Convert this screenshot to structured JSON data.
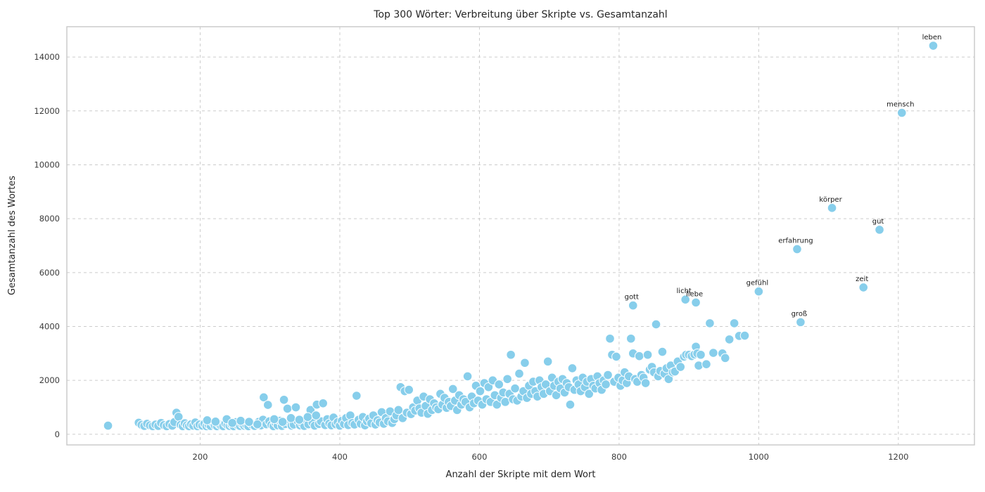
{
  "chart_data": {
    "type": "scatter",
    "title": "Top 300 Wörter: Verbreitung über Skripte vs. Gesamtanzahl",
    "xlabel": "Anzahl der Skripte mit dem Wort",
    "ylabel": "Gesamtanzahl des Wortes",
    "xlim": [
      9,
      1309
    ],
    "ylim": [
      -395,
      15125
    ],
    "xticks": [
      200,
      400,
      600,
      800,
      1000,
      1200
    ],
    "yticks": [
      0,
      2000,
      4000,
      6000,
      8000,
      10000,
      12000,
      14000
    ],
    "grid": true,
    "grid_style": "dashed",
    "legend": "none",
    "marker_color": "#87ceeb",
    "marker_edge_color": "#ffffff",
    "grid_color": "#cccccc",
    "spine_color": "#c8c8c8",
    "labeled_points": [
      {
        "label": "leben",
        "x": 1250,
        "y": 14420
      },
      {
        "label": "mensch",
        "x": 1205,
        "y": 11930
      },
      {
        "label": "körper",
        "x": 1105,
        "y": 8400
      },
      {
        "label": "gut",
        "x": 1173,
        "y": 7590
      },
      {
        "label": "erfahrung",
        "x": 1055,
        "y": 6870
      },
      {
        "label": "zeit",
        "x": 1150,
        "y": 5450
      },
      {
        "label": "gefühl",
        "x": 1000,
        "y": 5300
      },
      {
        "label": "licht",
        "x": 895,
        "y": 5000
      },
      {
        "label": "liebe",
        "x": 910,
        "y": 4890
      },
      {
        "label": "gott",
        "x": 820,
        "y": 4780
      },
      {
        "label": "groß",
        "x": 1060,
        "y": 4160
      }
    ],
    "points": [
      [
        68,
        320
      ],
      [
        112,
        430
      ],
      [
        116,
        350
      ],
      [
        120,
        310
      ],
      [
        124,
        390
      ],
      [
        128,
        330
      ],
      [
        132,
        300
      ],
      [
        136,
        360
      ],
      [
        140,
        310
      ],
      [
        144,
        420
      ],
      [
        148,
        340
      ],
      [
        152,
        300
      ],
      [
        156,
        380
      ],
      [
        160,
        320
      ],
      [
        163,
        450
      ],
      [
        166,
        800
      ],
      [
        169,
        650
      ],
      [
        172,
        350
      ],
      [
        175,
        300
      ],
      [
        178,
        410
      ],
      [
        181,
        330
      ],
      [
        184,
        300
      ],
      [
        187,
        370
      ],
      [
        190,
        320
      ],
      [
        193,
        440
      ],
      [
        196,
        300
      ],
      [
        199,
        360
      ],
      [
        203,
        320
      ],
      [
        206,
        390
      ],
      [
        209,
        300
      ],
      [
        212,
        350
      ],
      [
        215,
        310
      ],
      [
        218,
        430
      ],
      [
        221,
        330
      ],
      [
        224,
        300
      ],
      [
        227,
        370
      ],
      [
        230,
        320
      ],
      [
        233,
        300
      ],
      [
        236,
        400
      ],
      [
        239,
        340
      ],
      [
        242,
        310
      ],
      [
        245,
        360
      ],
      [
        248,
        300
      ],
      [
        251,
        450
      ],
      [
        254,
        330
      ],
      [
        257,
        310
      ],
      [
        260,
        380
      ],
      [
        263,
        320
      ],
      [
        266,
        350
      ],
      [
        269,
        300
      ],
      [
        272,
        420
      ],
      [
        275,
        340
      ],
      [
        278,
        310
      ],
      [
        281,
        390
      ],
      [
        284,
        460
      ],
      [
        287,
        330
      ],
      [
        290,
        540
      ],
      [
        291,
        1370
      ],
      [
        295,
        370
      ],
      [
        297,
        1090
      ],
      [
        299,
        480
      ],
      [
        302,
        350
      ],
      [
        305,
        300
      ],
      [
        308,
        420
      ],
      [
        311,
        330
      ],
      [
        314,
        500
      ],
      [
        317,
        310
      ],
      [
        320,
        1280
      ],
      [
        322,
        380
      ],
      [
        325,
        950
      ],
      [
        328,
        440
      ],
      [
        331,
        320
      ],
      [
        334,
        360
      ],
      [
        337,
        1000
      ],
      [
        340,
        480
      ],
      [
        343,
        330
      ],
      [
        346,
        400
      ],
      [
        349,
        310
      ],
      [
        352,
        530
      ],
      [
        355,
        370
      ],
      [
        358,
        900
      ],
      [
        361,
        430
      ],
      [
        364,
        320
      ],
      [
        367,
        1100
      ],
      [
        370,
        380
      ],
      [
        373,
        480
      ],
      [
        376,
        1150
      ],
      [
        379,
        340
      ],
      [
        382,
        560
      ],
      [
        385,
        400
      ],
      [
        388,
        330
      ],
      [
        391,
        620
      ],
      [
        394,
        370
      ],
      [
        397,
        450
      ],
      [
        400,
        320
      ],
      [
        403,
        500
      ],
      [
        406,
        380
      ],
      [
        409,
        600
      ],
      [
        412,
        340
      ],
      [
        415,
        700
      ],
      [
        418,
        420
      ],
      [
        421,
        360
      ],
      [
        424,
        1430
      ],
      [
        427,
        540
      ],
      [
        430,
        390
      ],
      [
        433,
        640
      ],
      [
        436,
        330
      ],
      [
        439,
        480
      ],
      [
        442,
        580
      ],
      [
        445,
        410
      ],
      [
        448,
        700
      ],
      [
        451,
        360
      ],
      [
        454,
        520
      ],
      [
        457,
        440
      ],
      [
        460,
        820
      ],
      [
        463,
        390
      ],
      [
        466,
        600
      ],
      [
        469,
        480
      ],
      [
        472,
        850
      ],
      [
        475,
        420
      ],
      [
        478,
        560
      ],
      [
        481,
        700
      ],
      [
        484,
        900
      ],
      [
        487,
        1750
      ],
      [
        490,
        600
      ],
      [
        493,
        1600
      ],
      [
        496,
        800
      ],
      [
        499,
        1650
      ],
      [
        502,
        750
      ],
      [
        505,
        1000
      ],
      [
        508,
        880
      ],
      [
        511,
        1250
      ],
      [
        514,
        960
      ],
      [
        517,
        800
      ],
      [
        520,
        1400
      ],
      [
        523,
        1050
      ],
      [
        526,
        760
      ],
      [
        529,
        1300
      ],
      [
        532,
        900
      ],
      [
        535,
        1150
      ],
      [
        538,
        1000
      ],
      [
        541,
        930
      ],
      [
        544,
        1500
      ],
      [
        547,
        1100
      ],
      [
        550,
        1350
      ],
      [
        553,
        980
      ],
      [
        556,
        1200
      ],
      [
        559,
        1050
      ],
      [
        562,
        1680
      ],
      [
        565,
        1250
      ],
      [
        568,
        900
      ],
      [
        571,
        1450
      ],
      [
        574,
        1100
      ],
      [
        577,
        1300
      ],
      [
        580,
        1200
      ],
      [
        583,
        2150
      ],
      [
        586,
        1000
      ],
      [
        589,
        1400
      ],
      [
        592,
        1150
      ],
      [
        595,
        1800
      ],
      [
        598,
        1250
      ],
      [
        601,
        1600
      ],
      [
        604,
        1100
      ],
      [
        607,
        1900
      ],
      [
        610,
        1300
      ],
      [
        613,
        1750
      ],
      [
        616,
        1200
      ],
      [
        619,
        2000
      ],
      [
        622,
        1450
      ],
      [
        625,
        1100
      ],
      [
        628,
        1850
      ],
      [
        631,
        1350
      ],
      [
        634,
        1550
      ],
      [
        637,
        1200
      ],
      [
        640,
        2050
      ],
      [
        643,
        1500
      ],
      [
        645,
        2950
      ],
      [
        648,
        1300
      ],
      [
        651,
        1700
      ],
      [
        654,
        1250
      ],
      [
        657,
        2250
      ],
      [
        660,
        1400
      ],
      [
        663,
        1600
      ],
      [
        665,
        2650
      ],
      [
        668,
        1350
      ],
      [
        671,
        1800
      ],
      [
        674,
        1500
      ],
      [
        677,
        1950
      ],
      [
        680,
        1600
      ],
      [
        683,
        1400
      ],
      [
        686,
        2000
      ],
      [
        689,
        1750
      ],
      [
        692,
        1500
      ],
      [
        695,
        1850
      ],
      [
        698,
        2700
      ],
      [
        701,
        1600
      ],
      [
        704,
        2100
      ],
      [
        707,
        1800
      ],
      [
        710,
        1450
      ],
      [
        713,
        1950
      ],
      [
        716,
        1700
      ],
      [
        719,
        2050
      ],
      [
        722,
        1550
      ],
      [
        725,
        1900
      ],
      [
        728,
        1750
      ],
      [
        730,
        1100
      ],
      [
        733,
        2450
      ],
      [
        736,
        1650
      ],
      [
        739,
        2000
      ],
      [
        742,
        1850
      ],
      [
        745,
        1600
      ],
      [
        748,
        2100
      ],
      [
        751,
        1750
      ],
      [
        754,
        1950
      ],
      [
        757,
        1500
      ],
      [
        760,
        2050
      ],
      [
        763,
        1800
      ],
      [
        766,
        1700
      ],
      [
        769,
        2150
      ],
      [
        772,
        1900
      ],
      [
        775,
        1650
      ],
      [
        778,
        2000
      ],
      [
        781,
        1850
      ],
      [
        784,
        2200
      ],
      [
        787,
        3550
      ],
      [
        790,
        2950
      ],
      [
        793,
        1950
      ],
      [
        796,
        2880
      ],
      [
        799,
        2100
      ],
      [
        802,
        1800
      ],
      [
        805,
        2000
      ],
      [
        808,
        2300
      ],
      [
        811,
        1900
      ],
      [
        814,
        2150
      ],
      [
        817,
        3550
      ],
      [
        820,
        3000
      ],
      [
        823,
        2050
      ],
      [
        826,
        1950
      ],
      [
        829,
        2900
      ],
      [
        832,
        2200
      ],
      [
        835,
        2100
      ],
      [
        838,
        1900
      ],
      [
        841,
        2950
      ],
      [
        844,
        2400
      ],
      [
        847,
        2500
      ],
      [
        850,
        2300
      ],
      [
        853,
        4080
      ],
      [
        856,
        2150
      ],
      [
        859,
        2350
      ],
      [
        862,
        3060
      ],
      [
        865,
        2250
      ],
      [
        868,
        2450
      ],
      [
        871,
        2050
      ],
      [
        874,
        2550
      ],
      [
        877,
        2300
      ],
      [
        880,
        2330
      ],
      [
        884,
        2700
      ],
      [
        888,
        2500
      ],
      [
        893,
        2880
      ],
      [
        896,
        2950
      ],
      [
        900,
        2950
      ],
      [
        904,
        2900
      ],
      [
        908,
        2960
      ],
      [
        910,
        3250
      ],
      [
        912,
        3000
      ],
      [
        914,
        2550
      ],
      [
        917,
        2950
      ],
      [
        925,
        2600
      ],
      [
        930,
        4120
      ],
      [
        935,
        3020
      ],
      [
        948,
        3000
      ],
      [
        952,
        2830
      ],
      [
        958,
        3520
      ],
      [
        965,
        4120
      ],
      [
        972,
        3650
      ],
      [
        980,
        3660
      ],
      [
        210,
        520
      ],
      [
        222,
        470
      ],
      [
        238,
        560
      ],
      [
        246,
        420
      ],
      [
        258,
        500
      ],
      [
        270,
        460
      ],
      [
        282,
        370
      ],
      [
        306,
        560
      ],
      [
        318,
        460
      ],
      [
        330,
        600
      ],
      [
        342,
        540
      ],
      [
        354,
        640
      ],
      [
        366,
        700
      ]
    ]
  }
}
